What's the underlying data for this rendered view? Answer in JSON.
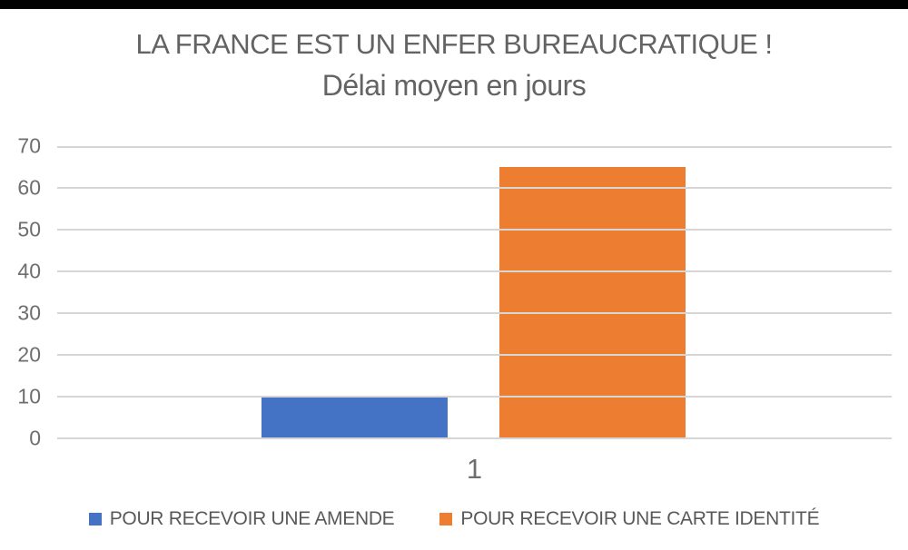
{
  "page": {
    "background": "#ffffff",
    "top_bar_color": "#000000"
  },
  "header": {
    "title": "LA FRANCE EST UN ENFER BUREAUCRATIQUE !",
    "subtitle": "Délai moyen en jours"
  },
  "chart_data": {
    "type": "bar",
    "title": "LA FRANCE EST UN ENFER BUREAUCRATIQUE !",
    "subtitle": "Délai moyen en jours",
    "categories": [
      "1"
    ],
    "series": [
      {
        "name": "POUR RECEVOIR UNE AMENDE",
        "values": [
          10
        ],
        "color": "#4472C4"
      },
      {
        "name": "POUR RECEVOIR UNE CARTE IDENTITÉ",
        "values": [
          65
        ],
        "color": "#ED7D31"
      }
    ],
    "ylim": [
      0,
      70
    ],
    "y_ticks": [
      0,
      10,
      20,
      30,
      40,
      50,
      60,
      70
    ],
    "grid": true,
    "legend_position": "bottom",
    "xlabel": "",
    "ylabel": ""
  },
  "colors": {
    "gridline": "#d6d6d6",
    "axis_text": "#6e6e6e",
    "title_text": "#636363",
    "legend_text": "#595959"
  }
}
